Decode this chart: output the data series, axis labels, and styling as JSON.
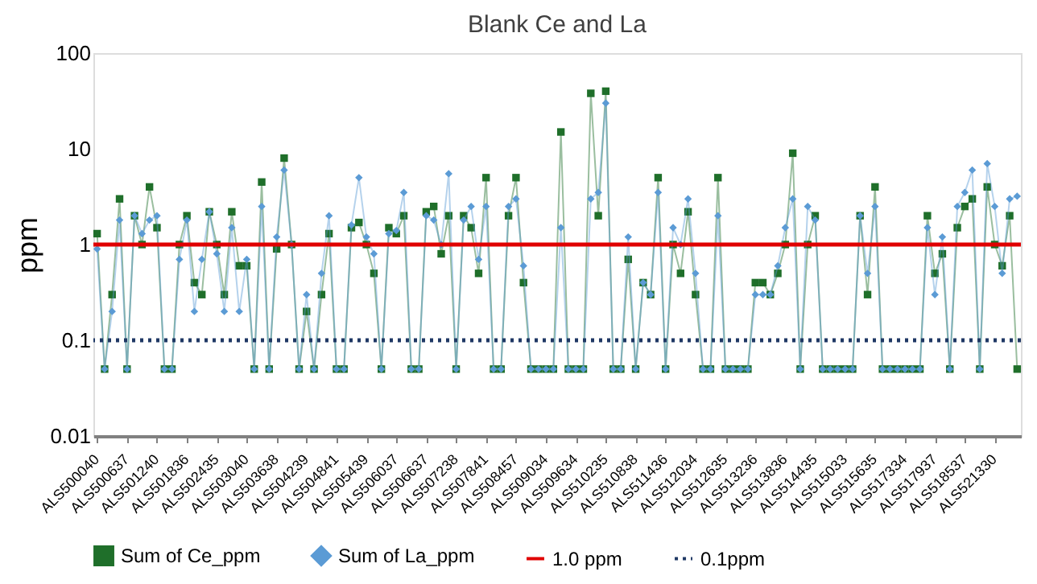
{
  "chart_data": {
    "type": "line",
    "title": "Blank Ce and La",
    "ylabel": "ppm",
    "categories": [
      "ALS500040",
      null,
      null,
      null,
      "ALS500637",
      null,
      null,
      null,
      "ALS501240",
      null,
      null,
      null,
      "ALS501836",
      null,
      null,
      null,
      "ALS502435",
      null,
      null,
      null,
      "ALS503040",
      null,
      null,
      null,
      "ALS503638",
      null,
      null,
      null,
      "ALS504239",
      null,
      null,
      null,
      "ALS504841",
      null,
      null,
      null,
      "ALS505439",
      null,
      null,
      null,
      "ALS506037",
      null,
      null,
      null,
      "ALS506637",
      null,
      null,
      null,
      "ALS507238",
      null,
      null,
      null,
      "ALS507841",
      null,
      null,
      null,
      "ALS508457",
      null,
      null,
      null,
      "ALS509034",
      null,
      null,
      null,
      "ALS509634",
      null,
      null,
      null,
      "ALS510235",
      null,
      null,
      null,
      "ALS510838",
      null,
      null,
      null,
      "ALS511436",
      null,
      null,
      null,
      "ALS512034",
      null,
      null,
      null,
      "ALS512635",
      null,
      null,
      null,
      "ALS513236",
      null,
      null,
      null,
      "ALS513836",
      null,
      null,
      null,
      "ALS514435",
      null,
      null,
      null,
      "ALS515033",
      null,
      null,
      null,
      "ALS515635",
      null,
      null,
      null,
      "ALS517334",
      null,
      null,
      null,
      "ALS517937",
      null,
      null,
      null,
      "ALS518537",
      null,
      null,
      null,
      "ALS521330",
      null,
      null,
      null
    ],
    "series": [
      {
        "name": "Sum of Ce_ppm",
        "color": "#1f6f2a",
        "marker": "square",
        "values": [
          1.3,
          0.05,
          0.3,
          3.0,
          0.05,
          2.0,
          1.0,
          4.0,
          1.5,
          0.05,
          0.05,
          1.0,
          2.0,
          0.4,
          0.3,
          2.2,
          1.0,
          0.3,
          2.2,
          0.6,
          0.6,
          0.05,
          4.5,
          0.05,
          0.9,
          8.0,
          1.0,
          0.05,
          0.2,
          0.05,
          0.3,
          1.3,
          0.05,
          0.05,
          1.5,
          1.7,
          1.0,
          0.5,
          0.05,
          1.5,
          1.3,
          2.0,
          0.05,
          0.05,
          2.2,
          2.5,
          0.8,
          2.0,
          0.05,
          2.0,
          1.5,
          0.5,
          5.0,
          0.05,
          0.05,
          2.0,
          5.0,
          0.4,
          0.05,
          0.05,
          0.05,
          0.05,
          15,
          0.05,
          0.05,
          0.05,
          38,
          2.0,
          40,
          0.05,
          0.05,
          0.7,
          0.05,
          0.4,
          0.3,
          5.0,
          0.05,
          1.0,
          0.5,
          2.2,
          0.3,
          0.05,
          0.05,
          5.0,
          0.05,
          0.05,
          0.05,
          0.05,
          0.4,
          0.4,
          0.3,
          0.5,
          1.0,
          9.0,
          0.05,
          1.0,
          2.0,
          0.05,
          0.05,
          0.05,
          0.05,
          0.05,
          2.0,
          0.3,
          4.0,
          0.05,
          0.05,
          0.05,
          0.05,
          0.05,
          0.05,
          2.0,
          0.5,
          0.8,
          0.05,
          1.5,
          2.5,
          3.0,
          0.05,
          4.0,
          1.0,
          0.6,
          2.0,
          0.05
        ]
      },
      {
        "name": "Sum of La_ppm",
        "color": "#5b9bd5",
        "marker": "diamond",
        "values": [
          0.9,
          0.05,
          0.2,
          1.8,
          0.05,
          2.0,
          1.3,
          1.8,
          2.0,
          0.05,
          0.05,
          0.7,
          1.8,
          0.2,
          0.7,
          2.2,
          0.8,
          0.2,
          1.5,
          0.2,
          0.7,
          0.05,
          2.5,
          0.05,
          1.2,
          6.0,
          1.0,
          0.05,
          0.3,
          0.05,
          0.5,
          2.0,
          0.05,
          0.05,
          1.6,
          5.0,
          1.2,
          0.8,
          0.05,
          1.3,
          1.4,
          3.5,
          0.05,
          0.05,
          2.0,
          1.8,
          1.0,
          5.5,
          0.05,
          1.8,
          2.5,
          0.7,
          2.5,
          0.05,
          0.05,
          2.5,
          3.0,
          0.6,
          0.05,
          0.05,
          0.05,
          0.05,
          1.5,
          0.05,
          0.05,
          0.05,
          3.0,
          3.5,
          30,
          0.05,
          0.05,
          1.2,
          0.05,
          0.4,
          0.3,
          3.5,
          0.05,
          1.5,
          1.0,
          3.0,
          0.5,
          0.05,
          0.05,
          2.0,
          0.05,
          0.05,
          0.05,
          0.05,
          0.3,
          0.3,
          0.3,
          0.6,
          1.5,
          3.0,
          0.05,
          2.5,
          1.8,
          0.05,
          0.05,
          0.05,
          0.05,
          0.05,
          2.0,
          0.5,
          2.5,
          0.05,
          0.05,
          0.05,
          0.05,
          0.05,
          0.05,
          1.5,
          0.3,
          1.2,
          0.05,
          2.5,
          3.5,
          6.0,
          0.05,
          7.0,
          2.5,
          0.5,
          3.0,
          3.2
        ]
      }
    ],
    "ref_lines": [
      {
        "axis": "y",
        "value": 1.0,
        "label": "1.0 ppm",
        "color": "#e00000",
        "line_style": "solid"
      },
      {
        "axis": "y",
        "value": 0.1,
        "label": "0.1ppm",
        "color": "#1f3864",
        "line_style": "dotted"
      }
    ],
    "log": "y",
    "ylim": [
      0.01,
      100
    ],
    "yticks": [
      0.01,
      0.1,
      1,
      10,
      100
    ],
    "grid": false,
    "legend": "bottom"
  }
}
